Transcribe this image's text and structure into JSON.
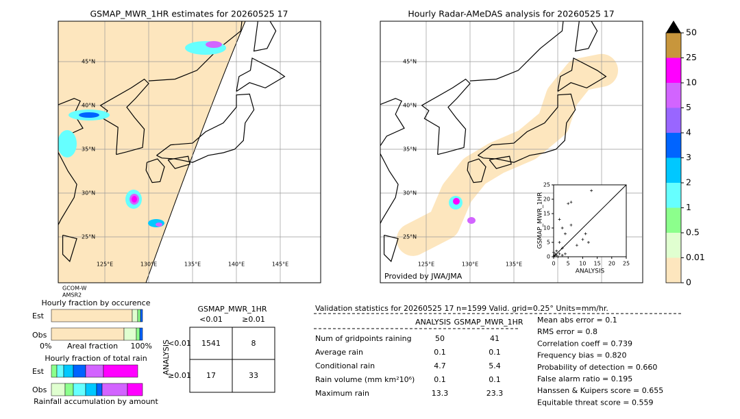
{
  "left_map": {
    "title": "GSMAP_MWR_1HR estimates for 20260525 17",
    "lat_labels": [
      "45°N",
      "40°N",
      "35°N",
      "30°N",
      "25°N"
    ],
    "lon_labels": [
      "125°E",
      "130°E",
      "135°E",
      "140°E",
      "145°E"
    ],
    "satellites": [
      "GCOM-W",
      "AMSR2"
    ]
  },
  "right_map": {
    "title": "Hourly Radar-AMeDAS analysis for 20260525 17",
    "lat_labels": [
      "45°N",
      "40°N",
      "35°N",
      "30°N",
      "25°N"
    ],
    "lon_labels": [
      "125°E",
      "130°E",
      "135°E"
    ],
    "credit": "Provided by JWA/JMA"
  },
  "scatter": {
    "ylabel": "GSMAP_MWR_1HR",
    "xlabel": "ANALYSIS",
    "ticks": [
      "0",
      "5",
      "10",
      "15",
      "20",
      "25"
    ]
  },
  "colorbar": {
    "labels": [
      "0",
      "0.01",
      "0.5",
      "1",
      "2",
      "3",
      "4",
      "5",
      "10",
      "25",
      "50"
    ]
  },
  "fraction": {
    "title_occurrence": "Hourly fraction by occurence",
    "rows": [
      "Est",
      "Obs"
    ],
    "axis_left": "0%",
    "axis_mid": "Areal fraction",
    "axis_right": "100%",
    "title_total": "Hourly fraction of total rain",
    "footer": "Rainfall accumulation by amount"
  },
  "contingency": {
    "title": "GSMAP_MWR_1HR",
    "cols": [
      "<0.01",
      "≥0.01"
    ],
    "row_axis": "ANALYSIS",
    "rows": [
      "<0.01",
      "≥0.01"
    ],
    "cells": [
      [
        "1541",
        "8"
      ],
      [
        "17",
        "33"
      ]
    ]
  },
  "validation": {
    "header": "Validation statistics for 20260525 17  n=1599 Valid. grid=0.25° Units=mm/hr.",
    "columns": [
      "ANALYSIS",
      "GSMAP_MWR_1HR"
    ],
    "rows": [
      [
        "Num of gridpoints raining",
        "50",
        "41"
      ],
      [
        "Average rain",
        "0.1",
        "0.1"
      ],
      [
        "Conditional rain",
        "4.7",
        "5.4"
      ],
      [
        "Rain volume (mm km²10⁶)",
        "0.1",
        "0.1"
      ],
      [
        "Maximum rain",
        "13.3",
        "23.3"
      ]
    ],
    "scores": [
      "Mean abs error =    0.1",
      "RMS error =    0.8",
      "Correlation coeff =  0.739",
      "Frequency bias =  0.820",
      "Probability of detection =  0.660",
      "False alarm ratio =  0.195",
      "Hanssen & Kuipers score =  0.655",
      "Equitable threat score =  0.559"
    ]
  }
}
